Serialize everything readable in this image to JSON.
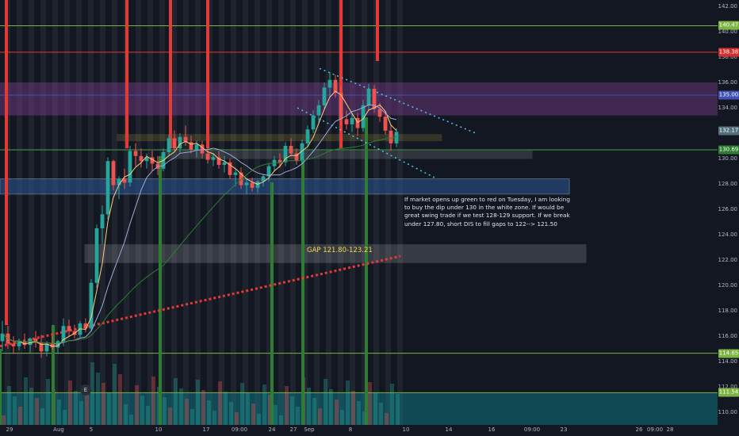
{
  "price_axis": {
    "ticks": [
      "142.00",
      "140.00",
      "138.00",
      "136.00",
      "134.00",
      "132.00",
      "130.00",
      "128.00",
      "126.00",
      "124.00",
      "122.00",
      "120.00",
      "118.00",
      "116.00",
      "114.00",
      "112.00",
      "110.00"
    ],
    "badges": [
      {
        "label": "140.47",
        "price": 140.47,
        "color": "#7cb342"
      },
      {
        "label": "138.38",
        "price": 138.38,
        "color": "#d32f2f"
      },
      {
        "label": "135.00",
        "price": 135.0,
        "color": "#3f51b5"
      },
      {
        "label": "132.17",
        "price": 132.17,
        "color": "#546e7a"
      },
      {
        "label": "130.69",
        "price": 130.69,
        "color": "#2e7d32"
      },
      {
        "label": "114.65",
        "price": 114.65,
        "color": "#7cb342"
      },
      {
        "label": "111.54",
        "price": 111.54,
        "color": "#7cb342"
      }
    ]
  },
  "time_axis": {
    "labels": [
      "29",
      "Aug",
      "5",
      "10",
      "17",
      "09:00",
      "24",
      "27",
      "Sep",
      "8",
      "10",
      "14",
      "16",
      "09:00",
      "23",
      "26",
      "09:00",
      "28"
    ]
  },
  "annotations": {
    "note": "If market opens up green to red on Tuesday, I am looking to buy the dip under 130 in the white zone. If would be great swing trade if we test 128-129 support. If we break under 127.80, short DIS to fill gaps to 122--> 121.50",
    "gap_label": "GAP 121.80-123.21",
    "event_marker": "E"
  },
  "chart_data": {
    "type": "candlestick",
    "y_range": [
      109,
      142.5
    ],
    "candles": [
      [
        115.6,
        117.2,
        114.8,
        116.2
      ],
      [
        116.2,
        116.8,
        115.0,
        115.4
      ],
      [
        115.4,
        116.0,
        114.6,
        115.2
      ],
      [
        115.2,
        115.8,
        114.9,
        115.6
      ],
      [
        115.6,
        116.2,
        115.0,
        115.3
      ],
      [
        115.3,
        115.9,
        114.7,
        115.8
      ],
      [
        115.8,
        116.4,
        115.1,
        115.5
      ],
      [
        115.5,
        116.1,
        114.3,
        114.8
      ],
      [
        114.8,
        115.6,
        114.4,
        115.4
      ],
      [
        115.4,
        116.0,
        114.9,
        115.1
      ],
      [
        115.1,
        115.7,
        114.6,
        115.6
      ],
      [
        115.6,
        117.4,
        115.2,
        116.8
      ],
      [
        116.8,
        117.3,
        116.0,
        116.4
      ],
      [
        116.4,
        116.9,
        115.8,
        116.1
      ],
      [
        116.1,
        117.2,
        115.9,
        117.0
      ],
      [
        117.0,
        117.4,
        116.3,
        116.6
      ],
      [
        116.6,
        120.5,
        116.4,
        120.2
      ],
      [
        120.2,
        124.8,
        119.8,
        124.5
      ],
      [
        124.5,
        126.3,
        123.2,
        125.6
      ],
      [
        125.6,
        130.1,
        125.2,
        129.8
      ],
      [
        129.8,
        129.9,
        127.5,
        127.9
      ],
      [
        127.9,
        128.6,
        126.8,
        128.4
      ],
      [
        128.4,
        129.2,
        127.6,
        128.1
      ],
      [
        128.1,
        131.0,
        127.8,
        130.6
      ],
      [
        130.6,
        131.2,
        129.4,
        130.2
      ],
      [
        130.2,
        130.8,
        129.3,
        129.8
      ],
      [
        129.8,
        130.4,
        129.2,
        130.1
      ],
      [
        130.1,
        130.6,
        129.0,
        129.6
      ],
      [
        129.6,
        130.2,
        128.7,
        129.2
      ],
      [
        129.2,
        130.8,
        129.0,
        130.5
      ],
      [
        130.5,
        131.9,
        130.2,
        131.6
      ],
      [
        131.6,
        132.2,
        130.6,
        130.8
      ],
      [
        130.8,
        132.0,
        130.4,
        131.7
      ],
      [
        131.7,
        132.6,
        131.0,
        131.3
      ],
      [
        131.3,
        131.8,
        130.4,
        130.7
      ],
      [
        130.7,
        131.4,
        130.1,
        131.1
      ],
      [
        131.1,
        131.4,
        130.0,
        130.4
      ],
      [
        130.4,
        130.9,
        129.6,
        129.9
      ],
      [
        129.9,
        130.4,
        129.4,
        130.1
      ],
      [
        130.1,
        130.6,
        129.2,
        129.5
      ],
      [
        129.5,
        130.2,
        128.9,
        129.7
      ],
      [
        129.7,
        130.0,
        128.4,
        128.7
      ],
      [
        128.7,
        129.2,
        127.8,
        128.9
      ],
      [
        128.9,
        129.3,
        127.6,
        127.9
      ],
      [
        127.9,
        128.4,
        127.2,
        128.1
      ],
      [
        128.1,
        128.5,
        127.4,
        127.7
      ],
      [
        127.7,
        128.3,
        127.3,
        128.2
      ],
      [
        128.2,
        128.8,
        127.8,
        128.6
      ],
      [
        128.6,
        129.6,
        128.2,
        129.4
      ],
      [
        129.4,
        130.2,
        129.0,
        129.9
      ],
      [
        129.9,
        130.4,
        129.3,
        129.7
      ],
      [
        129.7,
        131.3,
        129.4,
        131.0
      ],
      [
        131.0,
        131.6,
        130.2,
        130.4
      ],
      [
        130.4,
        130.8,
        129.5,
        129.8
      ],
      [
        129.8,
        131.5,
        129.6,
        131.2
      ],
      [
        131.2,
        132.6,
        130.9,
        132.3
      ],
      [
        132.3,
        133.8,
        132.0,
        133.4
      ],
      [
        133.4,
        134.6,
        132.8,
        134.2
      ],
      [
        134.2,
        136.0,
        133.9,
        135.6
      ],
      [
        135.6,
        136.8,
        134.9,
        136.2
      ],
      [
        136.2,
        136.6,
        134.8,
        135.2
      ],
      [
        135.2,
        135.7,
        132.6,
        133.1
      ],
      [
        133.1,
        133.8,
        132.3,
        132.7
      ],
      [
        132.7,
        133.6,
        132.1,
        133.2
      ],
      [
        133.2,
        133.6,
        131.8,
        132.4
      ],
      [
        132.4,
        134.6,
        132.1,
        134.2
      ],
      [
        134.2,
        135.9,
        133.8,
        135.5
      ],
      [
        135.5,
        135.8,
        133.6,
        133.9
      ],
      [
        133.9,
        134.4,
        132.9,
        133.3
      ],
      [
        133.3,
        133.7,
        131.9,
        132.2
      ],
      [
        132.2,
        132.7,
        130.6,
        131.2
      ],
      [
        131.2,
        132.4,
        130.9,
        132.1
      ]
    ],
    "horizontal_levels": [
      {
        "price": 140.47,
        "color": "#7cb342"
      },
      {
        "price": 138.38,
        "color": "#e53935"
      },
      {
        "price": 135.0,
        "color": "#3f51b5"
      },
      {
        "price": 130.69,
        "color": "#43a047"
      },
      {
        "price": 114.65,
        "color": "#7cb342"
      },
      {
        "price": 111.54,
        "color": "#7cb342"
      }
    ]
  }
}
